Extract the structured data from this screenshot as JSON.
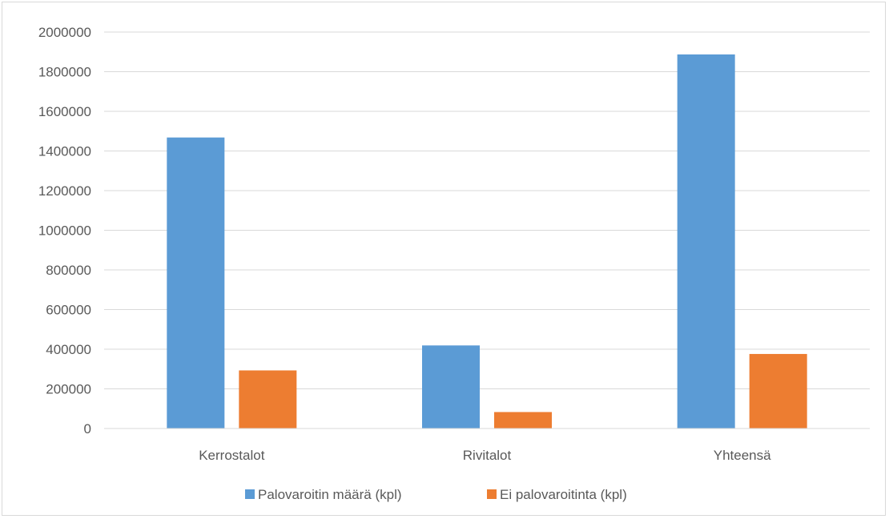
{
  "chart_data": {
    "type": "bar",
    "categories": [
      "Kerrostalot",
      "Rivitalot",
      "Yhteensä"
    ],
    "series": [
      {
        "name": "Palovaroitin määrä (kpl)",
        "values": [
          1468000,
          419000,
          1887000
        ],
        "color": "#5b9bd5"
      },
      {
        "name": "Ei palovaroitinta (kpl)",
        "values": [
          293000,
          83000,
          376000
        ],
        "color": "#ed7d31"
      }
    ],
    "title": "",
    "xlabel": "",
    "ylabel": "",
    "ylim": [
      0,
      2000000
    ],
    "yticks": [
      0,
      200000,
      400000,
      600000,
      800000,
      1000000,
      1200000,
      1400000,
      1600000,
      1800000,
      2000000
    ],
    "grid": true,
    "legend_position": "bottom"
  }
}
